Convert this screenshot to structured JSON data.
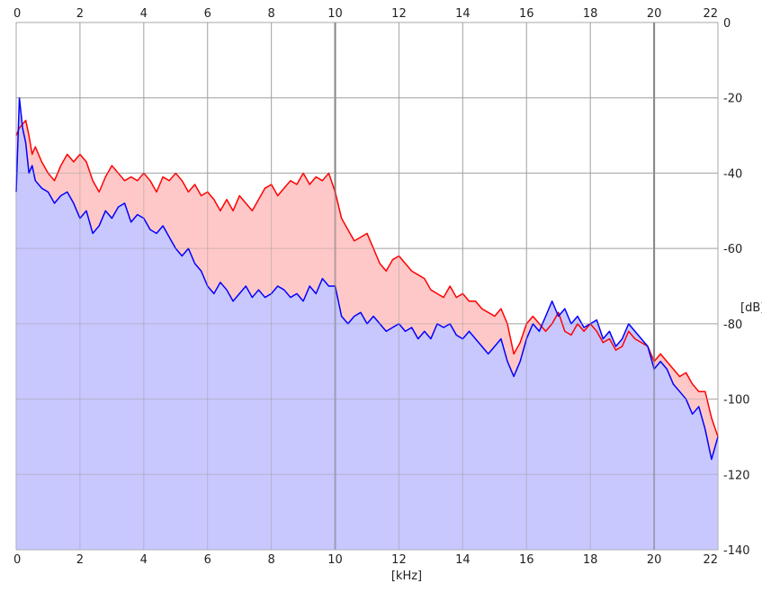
{
  "chart_data": {
    "type": "area",
    "xlabel": "[kHz]",
    "ylabel": "[dB]",
    "xlim": [
      0,
      22
    ],
    "ylim": [
      -140,
      0
    ],
    "x_ticks": [
      0,
      2,
      4,
      6,
      8,
      10,
      12,
      14,
      16,
      18,
      20,
      22
    ],
    "y_ticks": [
      0,
      -20,
      -40,
      -60,
      -80,
      -100,
      -120,
      -140
    ],
    "x_tick_labels": [
      "0",
      "2",
      "4",
      "6",
      "8",
      "10",
      "12",
      "14",
      "16",
      "18",
      "20",
      "22"
    ],
    "y_tick_labels": [
      "0",
      "-20",
      "-40",
      "-60",
      "-80",
      "-100",
      "-120",
      "-140"
    ],
    "grid": true,
    "series": [
      {
        "color": "#ff0000",
        "fill": "#ffc8c8",
        "x": [
          0.0,
          0.1,
          0.2,
          0.3,
          0.4,
          0.5,
          0.6,
          0.8,
          1.0,
          1.2,
          1.4,
          1.6,
          1.8,
          2.0,
          2.2,
          2.4,
          2.6,
          2.8,
          3.0,
          3.2,
          3.4,
          3.6,
          3.8,
          4.0,
          4.2,
          4.4,
          4.6,
          4.8,
          5.0,
          5.2,
          5.4,
          5.6,
          5.8,
          6.0,
          6.2,
          6.4,
          6.6,
          6.8,
          7.0,
          7.2,
          7.4,
          7.6,
          7.8,
          8.0,
          8.2,
          8.4,
          8.6,
          8.8,
          9.0,
          9.2,
          9.4,
          9.6,
          9.8,
          10.0,
          10.2,
          10.4,
          10.6,
          10.8,
          11.0,
          11.2,
          11.4,
          11.6,
          11.8,
          12.0,
          12.2,
          12.4,
          12.6,
          12.8,
          13.0,
          13.2,
          13.4,
          13.6,
          13.8,
          14.0,
          14.2,
          14.4,
          14.6,
          14.8,
          15.0,
          15.2,
          15.4,
          15.6,
          15.8,
          16.0,
          16.2,
          16.4,
          16.6,
          16.8,
          17.0,
          17.2,
          17.4,
          17.6,
          17.8,
          18.0,
          18.2,
          18.4,
          18.6,
          18.8,
          19.0,
          19.2,
          19.4,
          19.6,
          19.8,
          20.0,
          20.2,
          20.4,
          20.6,
          20.8,
          21.0,
          21.2,
          21.4,
          21.6,
          21.8,
          22.0
        ],
        "y": [
          -30,
          -28,
          -27,
          -26,
          -30,
          -35,
          -33,
          -37,
          -40,
          -42,
          -38,
          -35,
          -37,
          -35,
          -37,
          -42,
          -45,
          -41,
          -38,
          -40,
          -42,
          -41,
          -42,
          -40,
          -42,
          -45,
          -41,
          -42,
          -40,
          -42,
          -45,
          -43,
          -46,
          -45,
          -47,
          -50,
          -47,
          -50,
          -46,
          -48,
          -50,
          -47,
          -44,
          -43,
          -46,
          -44,
          -42,
          -43,
          -40,
          -43,
          -41,
          -42,
          -40,
          -45,
          -52,
          -55,
          -58,
          -57,
          -56,
          -60,
          -64,
          -66,
          -63,
          -62,
          -64,
          -66,
          -67,
          -68,
          -71,
          -72,
          -73,
          -70,
          -73,
          -72,
          -74,
          -74,
          -76,
          -77,
          -78,
          -76,
          -80,
          -88,
          -85,
          -80,
          -78,
          -80,
          -82,
          -80,
          -77,
          -82,
          -83,
          -80,
          -82,
          -80,
          -82,
          -85,
          -84,
          -87,
          -86,
          -82,
          -84,
          -85,
          -86,
          -90,
          -88,
          -90,
          -92,
          -94,
          -93,
          -96,
          -98,
          -98,
          -105,
          -110
        ]
      },
      {
        "color": "#0000ff",
        "fill": "#c8c8ff",
        "x": [
          0.0,
          0.1,
          0.2,
          0.3,
          0.4,
          0.5,
          0.6,
          0.8,
          1.0,
          1.2,
          1.4,
          1.6,
          1.8,
          2.0,
          2.2,
          2.4,
          2.6,
          2.8,
          3.0,
          3.2,
          3.4,
          3.6,
          3.8,
          4.0,
          4.2,
          4.4,
          4.6,
          4.8,
          5.0,
          5.2,
          5.4,
          5.6,
          5.8,
          6.0,
          6.2,
          6.4,
          6.6,
          6.8,
          7.0,
          7.2,
          7.4,
          7.6,
          7.8,
          8.0,
          8.2,
          8.4,
          8.6,
          8.8,
          9.0,
          9.2,
          9.4,
          9.6,
          9.8,
          10.0,
          10.2,
          10.4,
          10.6,
          10.8,
          11.0,
          11.2,
          11.4,
          11.6,
          11.8,
          12.0,
          12.2,
          12.4,
          12.6,
          12.8,
          13.0,
          13.2,
          13.4,
          13.6,
          13.8,
          14.0,
          14.2,
          14.4,
          14.6,
          14.8,
          15.0,
          15.2,
          15.4,
          15.6,
          15.8,
          16.0,
          16.2,
          16.4,
          16.6,
          16.8,
          17.0,
          17.2,
          17.4,
          17.6,
          17.8,
          18.0,
          18.2,
          18.4,
          18.6,
          18.8,
          19.0,
          19.2,
          19.4,
          19.6,
          19.8,
          20.0,
          20.2,
          20.4,
          20.6,
          20.8,
          21.0,
          21.2,
          21.4,
          21.6,
          21.8,
          22.0
        ],
        "y": [
          -45,
          -20,
          -28,
          -32,
          -40,
          -38,
          -42,
          -44,
          -45,
          -48,
          -46,
          -45,
          -48,
          -52,
          -50,
          -56,
          -54,
          -50,
          -52,
          -49,
          -48,
          -53,
          -51,
          -52,
          -55,
          -56,
          -54,
          -57,
          -60,
          -62,
          -60,
          -64,
          -66,
          -70,
          -72,
          -69,
          -71,
          -74,
          -72,
          -70,
          -73,
          -71,
          -73,
          -72,
          -70,
          -71,
          -73,
          -72,
          -74,
          -70,
          -72,
          -68,
          -70,
          -70,
          -78,
          -80,
          -78,
          -77,
          -80,
          -78,
          -80,
          -82,
          -81,
          -80,
          -82,
          -81,
          -84,
          -82,
          -84,
          -80,
          -81,
          -80,
          -83,
          -84,
          -82,
          -84,
          -86,
          -88,
          -86,
          -84,
          -90,
          -94,
          -90,
          -84,
          -80,
          -82,
          -78,
          -74,
          -78,
          -76,
          -80,
          -78,
          -81,
          -80,
          -79,
          -84,
          -82,
          -86,
          -84,
          -80,
          -82,
          -84,
          -86,
          -92,
          -90,
          -92,
          -96,
          -98,
          -100,
          -104,
          -102,
          -108,
          -116,
          -110
        ]
      }
    ]
  }
}
